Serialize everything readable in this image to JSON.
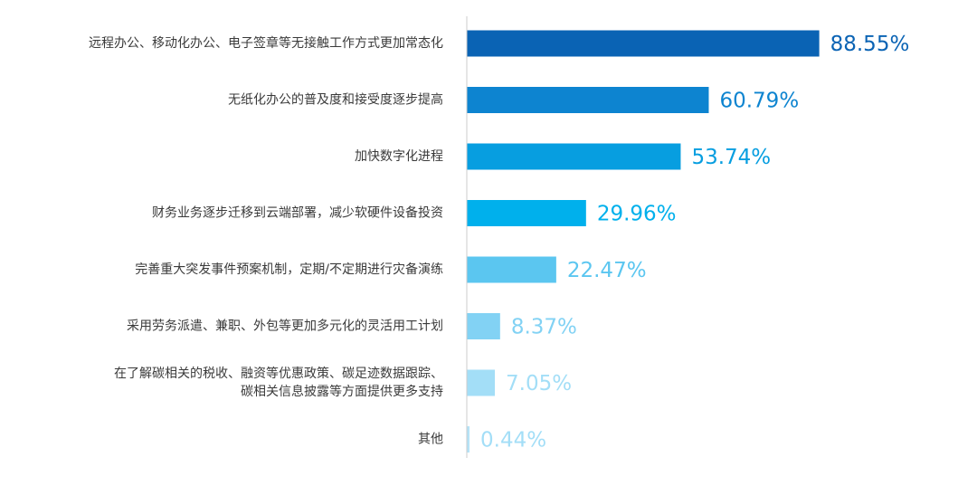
{
  "chart_data": {
    "type": "bar",
    "orientation": "horizontal",
    "categories": [
      [
        "远程办公、移动化办公、电子签章等无接触工作方式更加常态化"
      ],
      [
        "无纸化办公的普及度和接受度逐步提高"
      ],
      [
        "加快数字化进程"
      ],
      [
        "财务业务逐步迁移到云端部署，减少软硬件设备投资"
      ],
      [
        "完善重大突发事件预案机制，定期/不定期进行灾备演练"
      ],
      [
        "采用劳务派遣、兼职、外包等更加多元化的灵活用工计划"
      ],
      [
        "在了解碳相关的税收、融资等优惠政策、碳足迹数据跟踪、",
        "碳相关信息披露等方面提供更多支持"
      ],
      [
        "其他"
      ]
    ],
    "values": [
      88.55,
      60.79,
      53.74,
      29.96,
      22.47,
      8.37,
      7.05,
      0.44
    ],
    "value_labels": [
      "88.55%",
      "60.79%",
      "53.74%",
      "29.96%",
      "22.47%",
      "8.37%",
      "7.05%",
      "0.44%"
    ],
    "colors": [
      "#0a63b4",
      "#0d84d0",
      "#079ee0",
      "#00b0ec",
      "#5bc6f0",
      "#82d2f4",
      "#a3def7",
      "#b5e3f7"
    ],
    "label_colors": [
      "#0a63b4",
      "#0d84d0",
      "#079ee0",
      "#00b0ec",
      "#5bc6f0",
      "#82d2f4",
      "#a3def7",
      "#a3def7"
    ],
    "axis_color": "#cccccc",
    "xlim": [
      0,
      100
    ],
    "title": "",
    "xlabel": "",
    "ylabel": "",
    "grid": false,
    "legend": "none"
  }
}
